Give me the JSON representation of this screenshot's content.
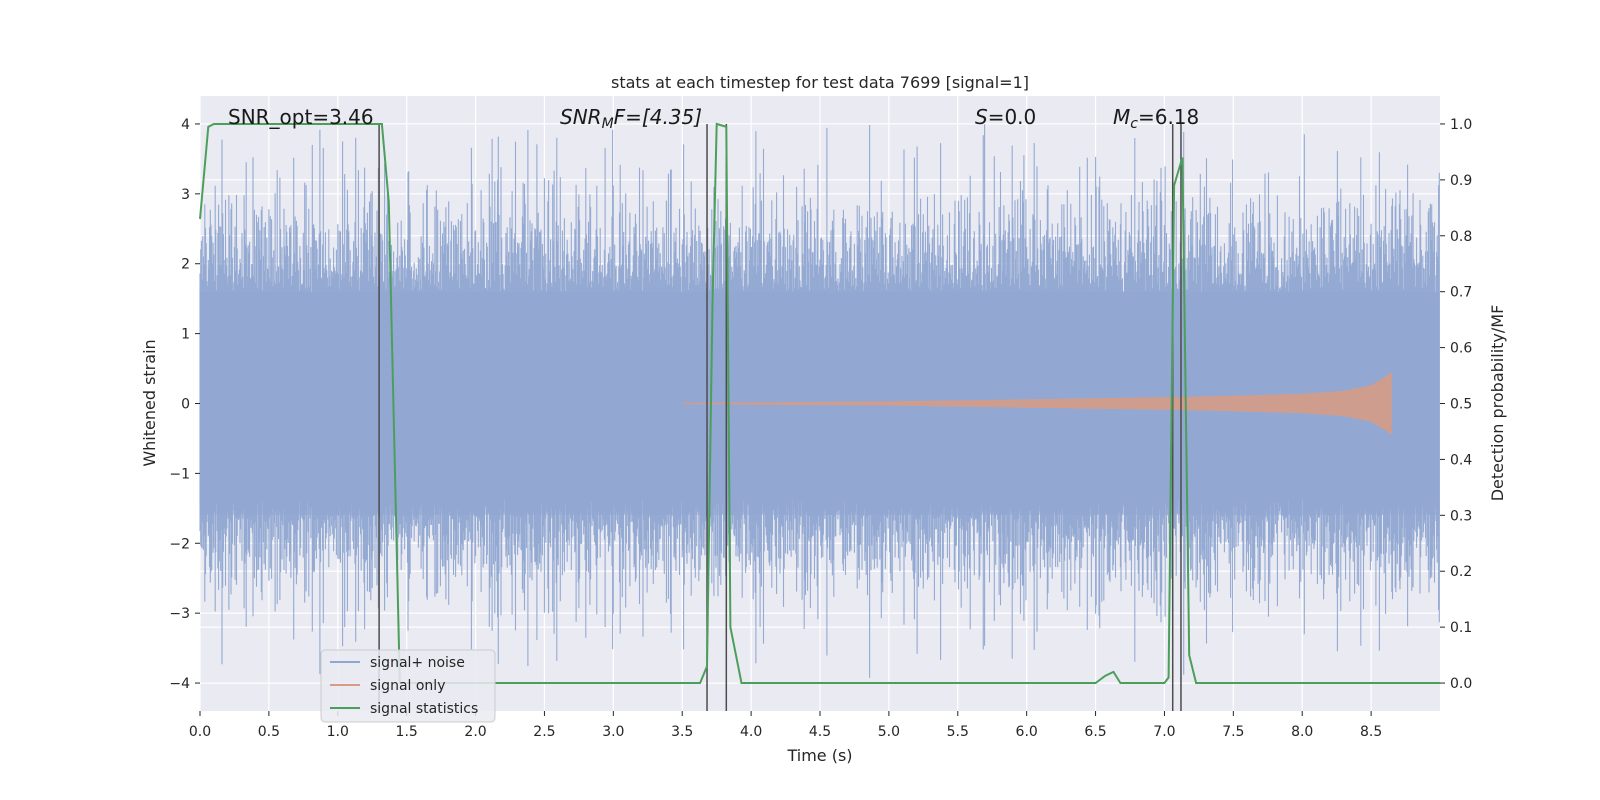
{
  "chart_data": {
    "type": "line",
    "title": "stats at each timestep for test data 7699 [signal=1]",
    "xlabel": "Time (s)",
    "ylabel": "Whitened strain",
    "y2label": "Detection probability/MF",
    "xlim": [
      0,
      9.0
    ],
    "ylim": [
      -4.4,
      4.4
    ],
    "y2lim": [
      -0.05,
      1.05
    ],
    "xticks": [
      0.0,
      0.5,
      1.0,
      1.5,
      2.0,
      2.5,
      3.0,
      3.5,
      4.0,
      4.5,
      5.0,
      5.5,
      6.0,
      6.5,
      7.0,
      7.5,
      8.0,
      8.5
    ],
    "xtick_labels": [
      "0.0",
      "0.5",
      "1.0",
      "1.5",
      "2.0",
      "2.5",
      "3.0",
      "3.5",
      "4.0",
      "4.5",
      "5.0",
      "5.5",
      "6.0",
      "6.5",
      "7.0",
      "7.5",
      "8.0",
      "8.5"
    ],
    "yticks": [
      4,
      3,
      2,
      1,
      0,
      -1,
      -2,
      -3,
      -4
    ],
    "ytick_labels": [
      "4",
      "3",
      "2",
      "1",
      "0",
      "−1",
      "−2",
      "−3",
      "−4"
    ],
    "y2ticks": [
      1.0,
      0.9,
      0.8,
      0.7,
      0.6,
      0.5,
      0.4,
      0.3,
      0.2,
      0.1,
      0.0
    ],
    "y2tick_labels": [
      "1.0",
      "0.9",
      "0.8",
      "0.7",
      "0.6",
      "0.5",
      "0.4",
      "0.3",
      "0.2",
      "0.1",
      "0.0"
    ],
    "grid": true,
    "legend_position": "lower-left",
    "annotations": {
      "snr_opt": "SNR_opt=3.46",
      "snr_mf_main": "SNR",
      "snr_mf_sub": "M",
      "snr_mf_rest": "F=[4.35]",
      "s_main": "S",
      "s_rest": "=0.0",
      "mc_main": "M",
      "mc_sub": "c",
      "mc_rest": "=6.18"
    },
    "series": [
      {
        "name": "signal+ noise",
        "color": "#8fa6d1",
        "noise_envelope": {
          "typical_amplitude": 1.6,
          "peak_amplitude": 4.0,
          "sample_interval": 0.005,
          "t_start": 0.0,
          "t_end": 9.0
        }
      },
      {
        "name": "signal only",
        "color": "#d99b83",
        "chirp_envelope": {
          "x": [
            3.5,
            5.0,
            6.0,
            7.0,
            7.5,
            8.0,
            8.3,
            8.5,
            8.6,
            8.65
          ],
          "amplitude": [
            0.01,
            0.03,
            0.06,
            0.09,
            0.11,
            0.14,
            0.18,
            0.26,
            0.38,
            0.45
          ]
        }
      },
      {
        "name": "signal statistics",
        "color": "#4c9f5a",
        "x": [
          0.0,
          0.06,
          0.1,
          0.5,
          1.0,
          1.3,
          1.32,
          1.37,
          1.45,
          2.0,
          3.0,
          3.63,
          3.68,
          3.72,
          3.75,
          3.82,
          3.85,
          3.93,
          4.0,
          5.0,
          6.0,
          6.5,
          6.57,
          6.63,
          6.68,
          7.0,
          7.03,
          7.07,
          7.13,
          7.18,
          7.23,
          8.0,
          9.0
        ],
        "values": [
          0.83,
          0.995,
          1.0,
          1.0,
          1.0,
          1.0,
          1.0,
          0.86,
          0.0,
          0.0,
          0.0,
          0.0,
          0.03,
          0.68,
          1.0,
          0.995,
          0.1,
          0.0,
          0.0,
          0.0,
          0.0,
          0.0,
          0.013,
          0.02,
          0.0,
          0.0,
          0.01,
          0.89,
          0.94,
          0.05,
          0.0,
          0.0,
          0.0
        ]
      }
    ],
    "vertical_lines": {
      "color": "#4d4d4d",
      "x": [
        1.3,
        3.68,
        3.82,
        7.06,
        7.12
      ]
    }
  }
}
